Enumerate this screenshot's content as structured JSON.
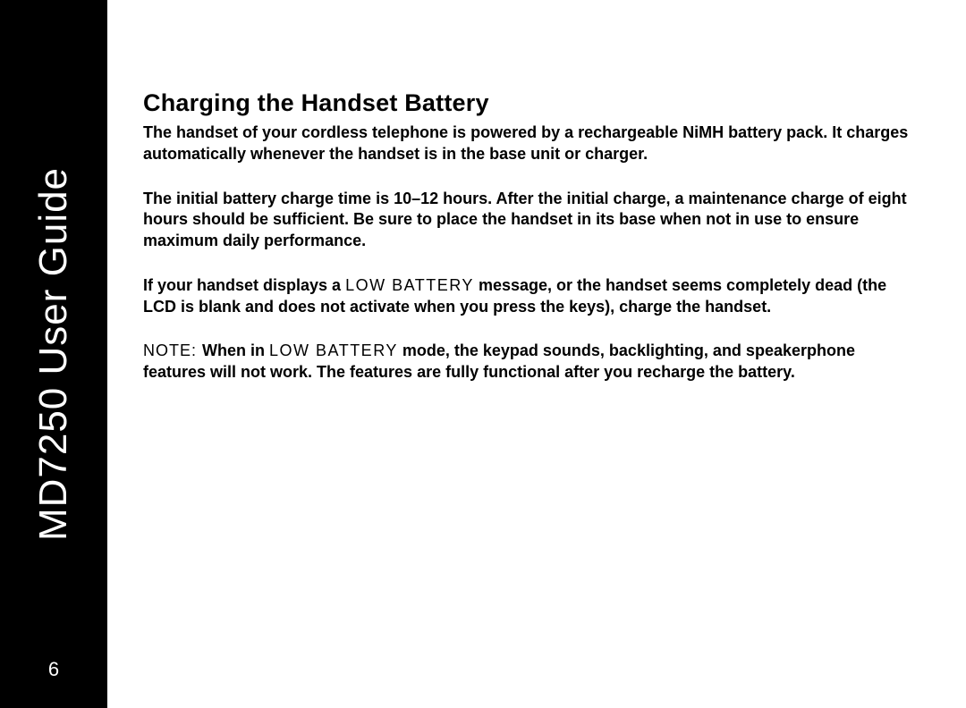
{
  "sidebar": {
    "title": "MD7250 User Guide",
    "page_number": "6",
    "bg_color": "#000000",
    "text_color": "#ffffff",
    "title_fontsize": 44,
    "pagenum_fontsize": 22
  },
  "content": {
    "heading": "Charging the Handset Battery",
    "heading_fontsize": 27,
    "body_fontsize": 18,
    "paragraphs": {
      "p1": "The handset of your cordless telephone is powered by a rechargeable NiMH battery pack. It charges automatically whenever the handset is in the base unit or charger.",
      "p2": "The initial battery charge time is 10–12 hours. After the initial charge, a maintenance charge of eight hours should be sufficient. Be sure to place the handset in its base when not in use to ensure maximum daily performance.",
      "p3a": "If your handset displays a ",
      "p3_lcd": "LOW BATTERY",
      "p3b": " message, or the handset seems completely dead (the LCD is blank and does not activate when you press the keys), charge the handset.",
      "p4_note": "NOTE: ",
      "p4a": "When in ",
      "p4_lcd": "LOW BATTERY",
      "p4b": " mode, the keypad sounds, backlighting, and speakerphone features will not work. The features are fully functional after you recharge the battery."
    }
  }
}
